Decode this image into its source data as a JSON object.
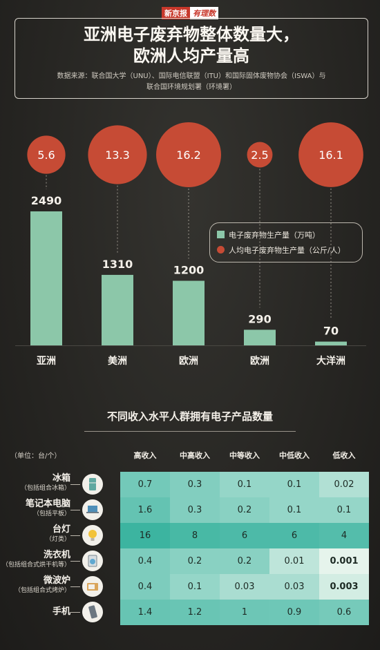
{
  "brand": {
    "part1": "新京报",
    "part2": "有理数"
  },
  "title_line1": "亚洲电子废弃物整体数量大，",
  "title_line2": "欧洲人均产量高",
  "source_line1": "数据来源：联合国大学（UNU）、国际电信联盟（ITU）和国际固体废物协会（ISWA）与",
  "source_line2": "联合国环境规划署（环境署）",
  "colors": {
    "bar": "#8cc7a9",
    "bubble": "#c64b35",
    "dash": "#9a958c"
  },
  "legend": {
    "bar": "电子废弃物生产量（万吨）",
    "bubble": "人均电子废弃物生产量（公斤/人）"
  },
  "chart_data": [
    {
      "type": "bar",
      "categories": [
        "亚洲",
        "美洲",
        "欧洲",
        "欧洲",
        "大洋洲"
      ],
      "series": [
        {
          "name": "电子废弃物生产量（万吨）",
          "values": [
            2490,
            1310,
            1200,
            290,
            70
          ]
        },
        {
          "name": "人均电子废弃物生产量（公斤/人）",
          "values": [
            5.6,
            13.3,
            16.2,
            2.5,
            16.1
          ]
        }
      ],
      "bar_labels": [
        "2490",
        "1310",
        "1200",
        "290",
        "70"
      ],
      "bubble_labels": [
        "5.6",
        "13.3",
        "16.2",
        "2.5",
        "16.1"
      ]
    },
    {
      "type": "heatmap",
      "title": "不同收入水平人群拥有电子产品数量",
      "unit": "（单位：台/个）",
      "columns": [
        "高收入",
        "中高收入",
        "中等收入",
        "中低收入",
        "低收入"
      ],
      "rows": [
        {
          "name": "冰箱",
          "sub": "（包括组合冰箱）",
          "icon": "fridge-icon",
          "values": [
            0.7,
            0.3,
            0.1,
            0.1,
            0.02
          ],
          "labels": [
            "0.7",
            "0.3",
            "0.1",
            "0.1",
            "0.02"
          ]
        },
        {
          "name": "笔记本电脑",
          "sub": "（包括平板）",
          "icon": "laptop-icon",
          "values": [
            1.6,
            0.3,
            0.2,
            0.1,
            0.1
          ],
          "labels": [
            "1.6",
            "0.3",
            "0.2",
            "0.1",
            "0.1"
          ]
        },
        {
          "name": "台灯",
          "sub": "（灯类）",
          "icon": "lamp-icon",
          "values": [
            16,
            8,
            6,
            6,
            4
          ],
          "labels": [
            "16",
            "8",
            "6",
            "6",
            "4"
          ]
        },
        {
          "name": "洗衣机",
          "sub": "（包括组合式烘干机等）",
          "icon": "washing-machine-icon",
          "values": [
            0.4,
            0.2,
            0.2,
            0.01,
            0.001
          ],
          "labels": [
            "0.4",
            "0.2",
            "0.2",
            "0.01",
            "0.001"
          ]
        },
        {
          "name": "微波炉",
          "sub": "（包括组合式烤炉）",
          "icon": "microwave-icon",
          "values": [
            0.4,
            0.1,
            0.03,
            0.03,
            0.003
          ],
          "labels": [
            "0.4",
            "0.1",
            "0.03",
            "0.03",
            "0.003"
          ]
        },
        {
          "name": "手机",
          "sub": "",
          "icon": "phone-icon",
          "values": [
            1.4,
            1.2,
            1,
            0.9,
            0.6
          ],
          "labels": [
            "1.4",
            "1.2",
            "1",
            "0.9",
            "0.6"
          ]
        }
      ]
    }
  ]
}
